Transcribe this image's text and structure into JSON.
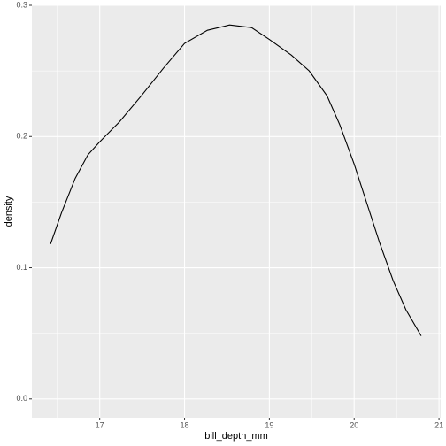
{
  "chart_data": {
    "type": "line",
    "x_label": "bill_depth_mm",
    "y_label": "density",
    "x": [
      16.42,
      16.55,
      16.71,
      16.86,
      17.0,
      17.23,
      17.49,
      17.75,
      18.0,
      18.27,
      18.53,
      18.79,
      19.0,
      19.26,
      19.47,
      19.68,
      19.83,
      20.0,
      20.15,
      20.3,
      20.46,
      20.61,
      20.79
    ],
    "series": [
      {
        "color": "#000000",
        "values": [
          0.118,
          0.142,
          0.168,
          0.186,
          0.196,
          0.211,
          0.231,
          0.252,
          0.271,
          0.281,
          0.285,
          0.283,
          0.274,
          0.262,
          0.25,
          0.231,
          0.209,
          0.179,
          0.149,
          0.119,
          0.09,
          0.068,
          0.048
        ]
      }
    ],
    "xlim": [
      16.2,
      21.02
    ],
    "ylim": [
      -0.0143,
      0.3
    ],
    "xticks": [
      17,
      18,
      19,
      20,
      21
    ],
    "yticks": [
      {
        "value": 0,
        "label": "0.0"
      },
      0.1,
      0.2,
      0.3
    ],
    "grid": true
  }
}
